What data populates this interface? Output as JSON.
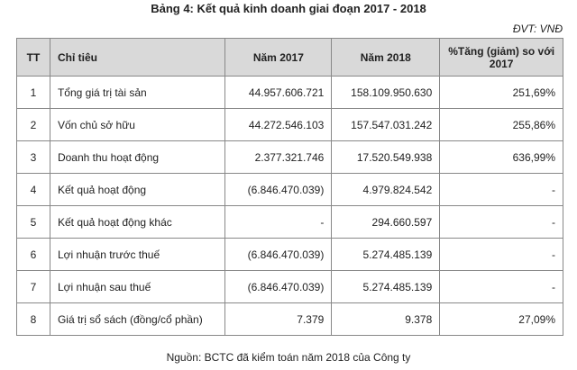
{
  "header": {
    "title": "Bảng 4: Kết quả kinh doanh giai đoạn 2017 - 2018",
    "unit": "ĐVT: VNĐ"
  },
  "table": {
    "headers": [
      "TT",
      "Chỉ tiêu",
      "Năm 2017",
      "Năm 2018",
      "%Tăng (giảm) so với 2017"
    ],
    "rows": [
      [
        "1",
        "Tổng giá trị tài sản",
        "44.957.606.721",
        "158.109.950.630",
        "251,69%"
      ],
      [
        "2",
        "Vốn chủ sở hữu",
        "44.272.546.103",
        "157.547.031.242",
        "255,86%"
      ],
      [
        "3",
        "Doanh thu hoạt động",
        "2.377.321.746",
        "17.520.549.938",
        "636,99%"
      ],
      [
        "4",
        "Kết quả hoạt động",
        "(6.846.470.039)",
        "4.979.824.542",
        "-"
      ],
      [
        "5",
        "Kết quả hoạt động khác",
        "-",
        "294.660.597",
        "-"
      ],
      [
        "6",
        "Lợi nhuận trước thuế",
        "(6.846.470.039)",
        "5.274.485.139",
        "-"
      ],
      [
        "7",
        "Lợi nhuận sau thuế",
        "(6.846.470.039)",
        "5.274.485.139",
        "-"
      ],
      [
        "8",
        "Giá trị sổ sách (đồng/cổ phần)",
        "7.379",
        "9.378",
        "27,09%"
      ]
    ]
  },
  "footer": {
    "source": "Nguồn: BCTC đã kiểm toán năm 2018 của Công ty"
  }
}
